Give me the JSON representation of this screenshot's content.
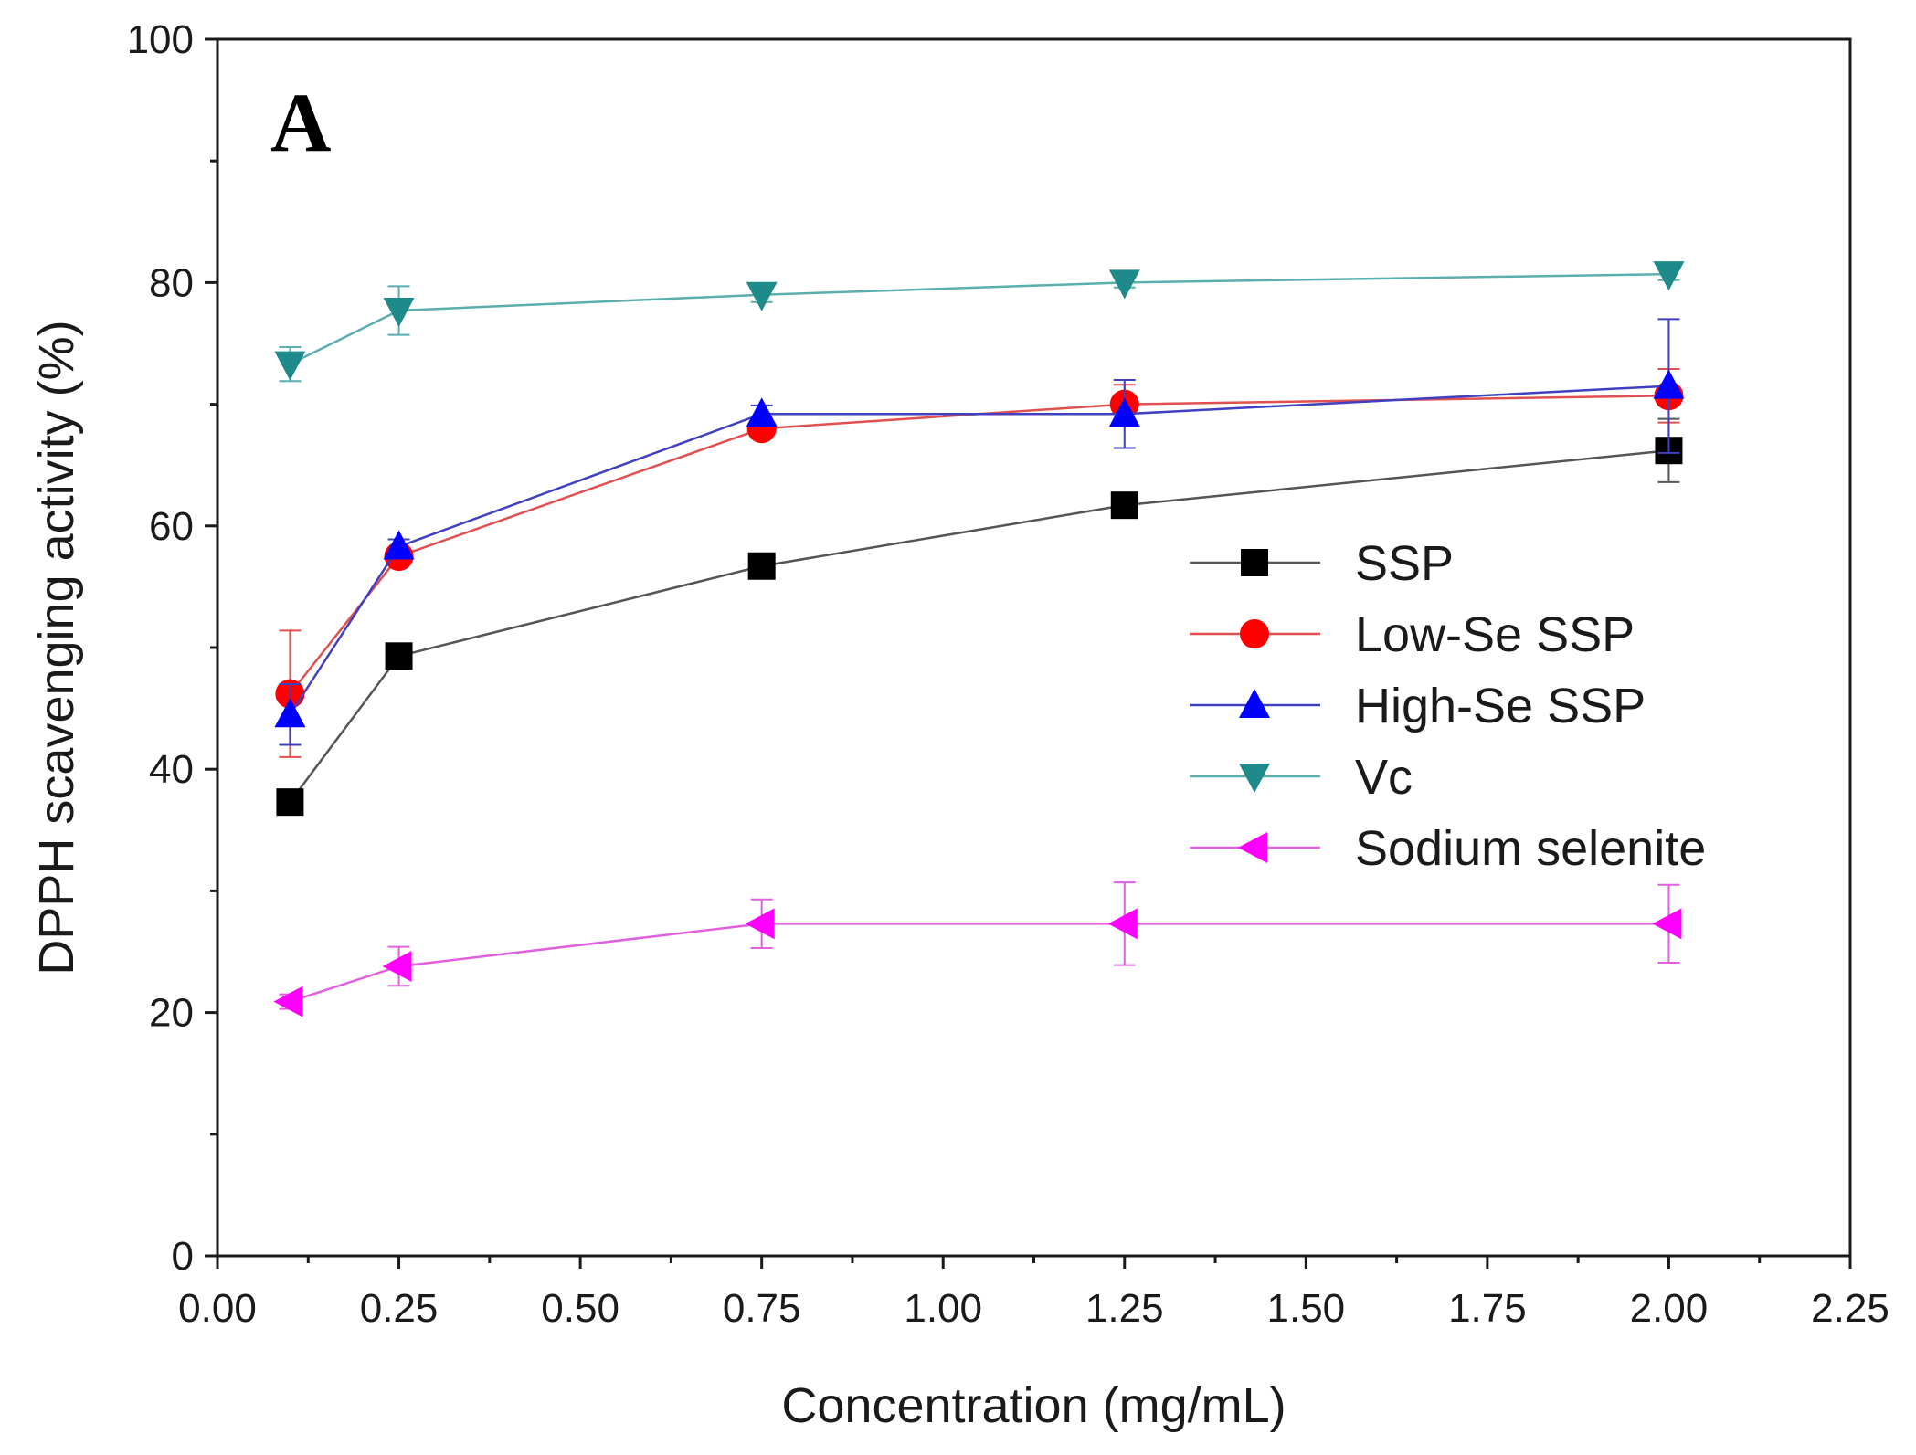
{
  "chart_data": {
    "type": "line",
    "panel_label": "A",
    "xlabel": "Concentration (mg/mL)",
    "ylabel": "DPPH scavenging activity (%)",
    "xlim": [
      0.0,
      2.25
    ],
    "ylim": [
      0,
      100
    ],
    "xticks": [
      0.0,
      0.25,
      0.5,
      0.75,
      1.0,
      1.25,
      1.5,
      1.75,
      2.0,
      2.25
    ],
    "xtick_labels": [
      "0.00",
      "0.25",
      "0.50",
      "0.75",
      "1.00",
      "1.25",
      "1.50",
      "1.75",
      "2.00",
      "2.25"
    ],
    "yticks": [
      0,
      20,
      40,
      60,
      80,
      100
    ],
    "ytick_labels": [
      "0",
      "20",
      "40",
      "60",
      "80",
      "100"
    ],
    "grid": false,
    "legend_position": "right",
    "x": [
      0.1,
      0.25,
      0.75,
      1.25,
      2.0
    ],
    "series": [
      {
        "name": "SSP",
        "marker": "square",
        "color": "#000000",
        "line_color": "#555555",
        "values": [
          37.3,
          49.3,
          56.7,
          61.7,
          66.2
        ],
        "errors": [
          0.6,
          0.8,
          0.7,
          0.8,
          2.6
        ]
      },
      {
        "name": "Low-Se SSP",
        "marker": "circle",
        "color": "#ff0000",
        "line_color": "#e05050",
        "values": [
          46.2,
          57.5,
          68.0,
          70.0,
          70.7
        ],
        "errors": [
          5.2,
          0.6,
          0.8,
          1.6,
          2.2
        ]
      },
      {
        "name": "High-Se SSP",
        "marker": "triangle-up",
        "color": "#0000ff",
        "line_color": "#4040c0",
        "values": [
          44.5,
          58.3,
          69.2,
          69.2,
          71.5
        ],
        "errors": [
          2.5,
          0.6,
          0.7,
          2.8,
          5.5
        ]
      },
      {
        "name": "Vc",
        "marker": "triangle-down",
        "color": "#1f8a8a",
        "line_color": "#5aaeae",
        "values": [
          73.3,
          77.7,
          79.0,
          80.0,
          80.7
        ],
        "errors": [
          1.4,
          2.0,
          0.6,
          0.4,
          0.5
        ]
      },
      {
        "name": "Sodium selenite",
        "marker": "triangle-left",
        "color": "#ff00ff",
        "line_color": "#e060e0",
        "values": [
          20.9,
          23.8,
          27.3,
          27.3,
          27.3
        ],
        "errors": [
          0.6,
          1.6,
          2.0,
          3.4,
          3.2
        ]
      }
    ]
  }
}
